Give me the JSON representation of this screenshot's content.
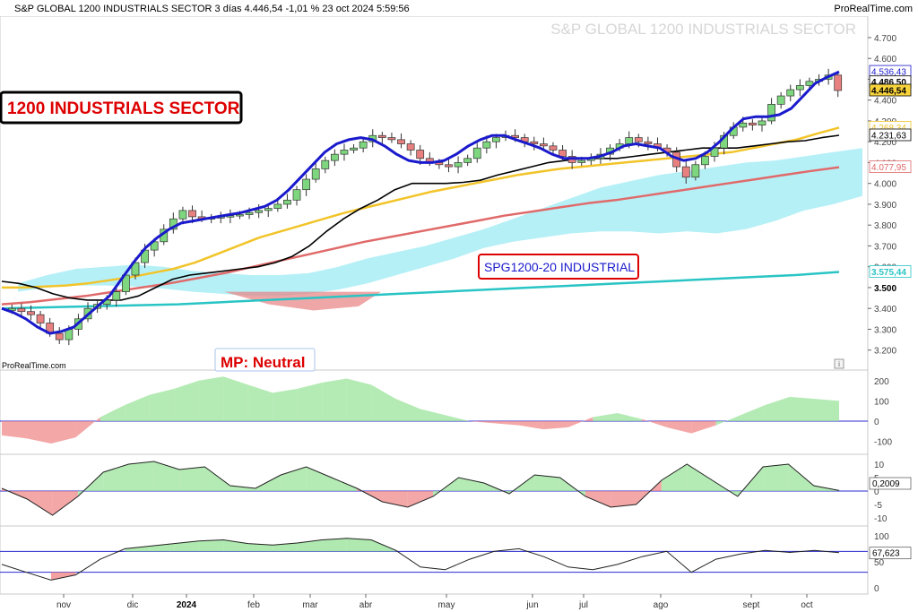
{
  "header": {
    "text": "S&P GLOBAL 1200 INDUSTRIALS SECTOR 3 días 4.446,54 -1,01 % 23 oct 2024 5:59:56",
    "watermark": "S&P GLOBAL 1200 INDUSTRIALS SECTOR"
  },
  "annotations": {
    "title_box": "1200 INDUSTRIALS SECTOR",
    "index_box": "SPG1200-20 INDUSTRIAL",
    "mp_box": "MP: Neutral",
    "credit": "ProRealTime.com"
  },
  "colors": {
    "up_candle": "#7ed67e",
    "down_candle": "#e88080",
    "blue_line": "#1a1acc",
    "yellow_ma": "#f2c42a",
    "red_ma": "#e06a6a",
    "teal_ma": "#29c4c4",
    "cloud": "#86e6f2",
    "red_box": "#dd0000",
    "value_highlight": "#f7d33c"
  },
  "chart_data": [
    {
      "type": "candlestick",
      "panel": "price",
      "title": "S&P GLOBAL 1200 INDUSTRIALS SECTOR",
      "x_ticks": [
        "nov",
        "dic",
        "2024",
        "feb",
        "mar",
        "abr",
        "may",
        "jun",
        "jul",
        "ago",
        "sept",
        "oct"
      ],
      "y_ticks": [
        "4.700",
        "4.600",
        "4.500",
        "4.400",
        "4.300",
        "4.200",
        "4.100",
        "4.000",
        "3.900",
        "3.800",
        "3.700",
        "3.600",
        "3.500",
        "3.400",
        "3.300",
        "3.200"
      ],
      "ylim": [
        3160,
        4760
      ],
      "value_labels": [
        {
          "text": "4.536,43",
          "value": 4536,
          "color": "#1a1acc"
        },
        {
          "text": "4.486,50",
          "value": 4486,
          "color": "#000000"
        },
        {
          "text": "4.446,54",
          "value": 4446,
          "color": "#000000",
          "highlight": true
        },
        {
          "text": "4.268,34",
          "value": 4268,
          "color": "#f2c42a"
        },
        {
          "text": "4.231,63",
          "value": 4231,
          "color": "#000000"
        },
        {
          "text": "4.077,95",
          "value": 4078,
          "color": "#e06a6a"
        },
        {
          "text": "3.575,44",
          "value": 3575,
          "color": "#29c4c4",
          "bold": true
        }
      ],
      "closes": [
        3400,
        3385,
        3370,
        3330,
        3280,
        3250,
        3300,
        3350,
        3400,
        3420,
        3440,
        3480,
        3560,
        3620,
        3680,
        3720,
        3780,
        3830,
        3870,
        3840,
        3830,
        3835,
        3840,
        3845,
        3850,
        3860,
        3870,
        3880,
        3900,
        3920,
        3970,
        4020,
        4070,
        4110,
        4140,
        4160,
        4170,
        4200,
        4230,
        4220,
        4210,
        4190,
        4160,
        4120,
        4100,
        4090,
        4080,
        4100,
        4120,
        4170,
        4200,
        4220,
        4230,
        4220,
        4200,
        4190,
        4180,
        4160,
        4130,
        4100,
        4110,
        4120,
        4140,
        4170,
        4190,
        4220,
        4200,
        4190,
        4170,
        4150,
        4080,
        4030,
        4090,
        4130,
        4170,
        4230,
        4270,
        4290,
        4280,
        4300,
        4380,
        4420,
        4450,
        4470,
        4490,
        4500,
        4520,
        4446
      ],
      "series": [
        {
          "name": "",
          "color": "#1a1acc",
          "values": [
            3400,
            3380,
            3350,
            3310,
            3280,
            3290,
            3310,
            3360,
            3410,
            3460,
            3540,
            3620,
            3690,
            3740,
            3780,
            3810,
            3820,
            3830,
            3840,
            3850,
            3860,
            3875,
            3890,
            3920,
            3970,
            4030,
            4090,
            4150,
            4190,
            4210,
            4220,
            4210,
            4180,
            4140,
            4110,
            4100,
            4100,
            4110,
            4140,
            4180,
            4210,
            4230,
            4230,
            4210,
            4190,
            4170,
            4140,
            4120,
            4120,
            4120,
            4130,
            4150,
            4180,
            4190,
            4180,
            4170,
            4130,
            4110,
            4120,
            4150,
            4200,
            4260,
            4310,
            4320,
            4320,
            4330,
            4360,
            4420,
            4480,
            4510,
            4536
          ]
        },
        {
          "name": "",
          "color": "#000000",
          "values": [
            3530,
            3520,
            3500,
            3470,
            3450,
            3440,
            3440,
            3440,
            3460,
            3500,
            3540,
            3560,
            3570,
            3580,
            3590,
            3600,
            3620,
            3650,
            3700,
            3770,
            3830,
            3880,
            3920,
            3970,
            4000,
            4000,
            4000,
            4005,
            4015,
            4040,
            4060,
            4080,
            4100,
            4110,
            4120,
            4120,
            4120,
            4130,
            4140,
            4150,
            4160,
            4170,
            4170,
            4170,
            4180,
            4190,
            4200,
            4205,
            4220,
            4231
          ]
        },
        {
          "name": "",
          "color": "#f2c42a",
          "values": [
            3500,
            3500,
            3505,
            3510,
            3520,
            3535,
            3550,
            3570,
            3590,
            3620,
            3660,
            3700,
            3740,
            3770,
            3800,
            3830,
            3860,
            3885,
            3910,
            3935,
            3960,
            3980,
            4000,
            4020,
            4040,
            4055,
            4070,
            4080,
            4090,
            4100,
            4110,
            4120,
            4130,
            4140,
            4150,
            4170,
            4190,
            4210,
            4240,
            4268
          ]
        },
        {
          "name": "",
          "color": "#e06a6a",
          "values": [
            3420,
            3430,
            3445,
            3460,
            3480,
            3500,
            3520,
            3545,
            3570,
            3600,
            3630,
            3660,
            3690,
            3720,
            3745,
            3770,
            3795,
            3820,
            3845,
            3865,
            3885,
            3905,
            3920,
            3940,
            3960,
            3980,
            4000,
            4020,
            4040,
            4060,
            4078
          ]
        },
        {
          "name": "",
          "color": "#29c4c4",
          "values": [
            3400,
            3405,
            3410,
            3415,
            3420,
            3430,
            3440,
            3450,
            3460,
            3470,
            3480,
            3490,
            3500,
            3510,
            3520,
            3530,
            3540,
            3550,
            3560,
            3575
          ]
        }
      ]
    },
    {
      "type": "area",
      "panel": "oscillator-1",
      "y_ticks": [
        "200",
        "100",
        "0",
        "-100"
      ],
      "ylim": [
        -150,
        230
      ],
      "values": [
        -70,
        -85,
        -110,
        -80,
        20,
        80,
        130,
        160,
        200,
        220,
        180,
        140,
        160,
        190,
        210,
        180,
        110,
        60,
        30,
        0,
        -10,
        -20,
        -40,
        -30,
        20,
        40,
        10,
        -30,
        -60,
        -20,
        30,
        80,
        120,
        110,
        100
      ]
    },
    {
      "type": "area",
      "panel": "oscillator-2",
      "y_ticks": [
        "10",
        "5",
        "0",
        "-5",
        "-10"
      ],
      "ylim": [
        -12,
        12
      ],
      "value_label": "0,2009",
      "values": [
        1,
        -3,
        -9,
        -2,
        7,
        10,
        11,
        8,
        9,
        2,
        1,
        6,
        9,
        5,
        1,
        -4,
        -6,
        -2,
        5,
        3,
        -1,
        6,
        5,
        -2,
        -6,
        -5,
        4,
        10,
        4,
        -2,
        9,
        10,
        2,
        0.2
      ]
    },
    {
      "type": "line",
      "panel": "oscillator-3",
      "y_ticks": [
        "100",
        "50",
        "0"
      ],
      "ylim": [
        -10,
        110
      ],
      "value_label": "67,623",
      "levels": [
        70,
        30
      ],
      "values": [
        45,
        30,
        15,
        25,
        55,
        75,
        80,
        85,
        90,
        92,
        85,
        82,
        86,
        92,
        95,
        92,
        72,
        40,
        35,
        55,
        70,
        75,
        60,
        40,
        35,
        45,
        60,
        70,
        30,
        55,
        65,
        72,
        68,
        72,
        67.6
      ]
    }
  ]
}
